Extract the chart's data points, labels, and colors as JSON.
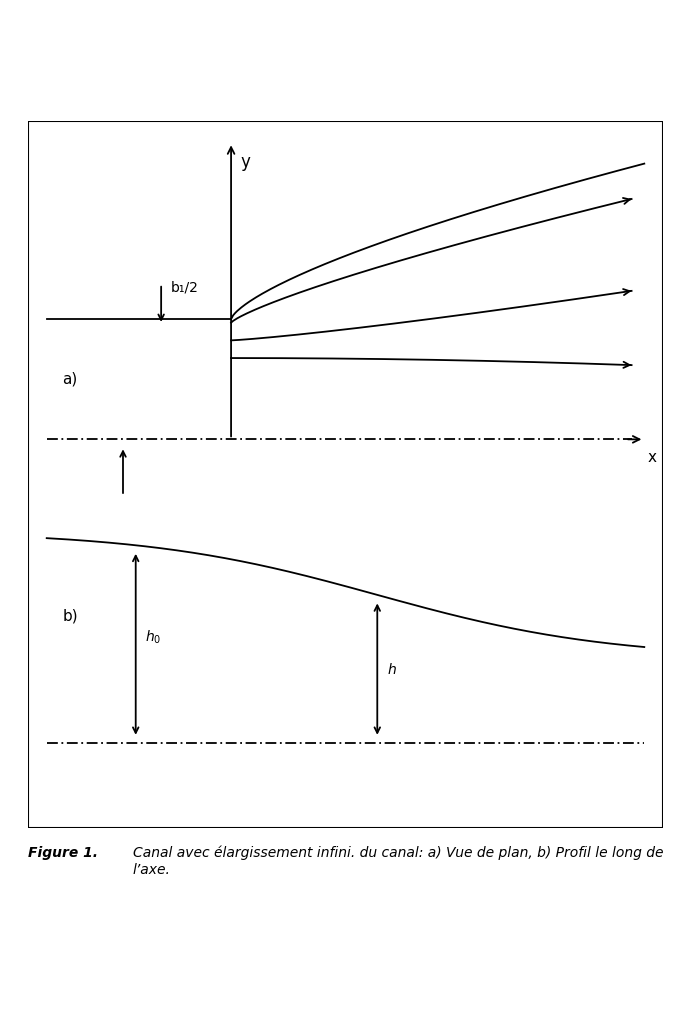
{
  "fig_width": 6.91,
  "fig_height": 10.1,
  "dpi": 100,
  "caption_bold": "Figure 1.",
  "caption_italic": "Canal avec élargissement infini. du canal: a) Vue de plan, b) Profil le long de l’axe.",
  "label_a": "a)",
  "label_b": "b)",
  "label_x": "x",
  "label_y": "y",
  "label_b1": "b₁/2",
  "label_h0": "h₀",
  "label_h": "h",
  "bg_color": "#ffffff",
  "line_color": "#000000"
}
